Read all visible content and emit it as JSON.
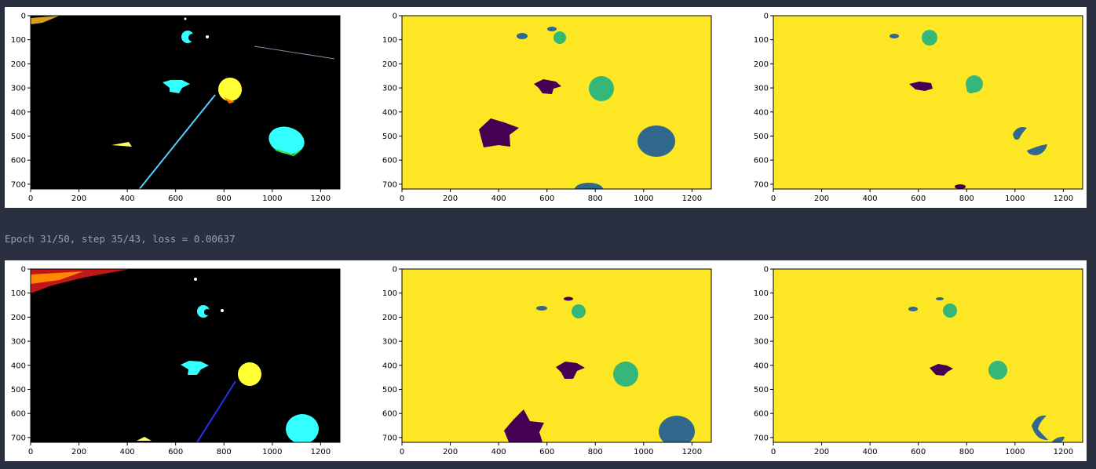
{
  "stdout": {
    "text": "Epoch 31/50, step 35/43, loss = 0.00637"
  },
  "colors": {
    "background": "#2b3040",
    "figure": "#ffffff",
    "viridis_yellow": "#fde725",
    "viridis_green": "#35b779",
    "viridis_teal": "#31688e",
    "viridis_purple": "#440154",
    "image_black": "#000000",
    "cyan_object": "#33ffff",
    "yellow_object": "#ffff33",
    "stdout_text": "#9aa0ad"
  },
  "axes": {
    "x_ticks": [
      "0",
      "200",
      "400",
      "600",
      "800",
      "1000",
      "1200"
    ],
    "y_ticks": [
      "0",
      "100",
      "200",
      "300",
      "400",
      "500",
      "600",
      "700"
    ]
  },
  "figures": [
    {
      "panels": [
        {
          "kind": "input-image"
        },
        {
          "kind": "ground-truth-mask"
        },
        {
          "kind": "prediction-mask"
        }
      ]
    },
    {
      "panels": [
        {
          "kind": "input-image"
        },
        {
          "kind": "ground-truth-mask"
        },
        {
          "kind": "prediction-mask"
        }
      ]
    }
  ]
}
